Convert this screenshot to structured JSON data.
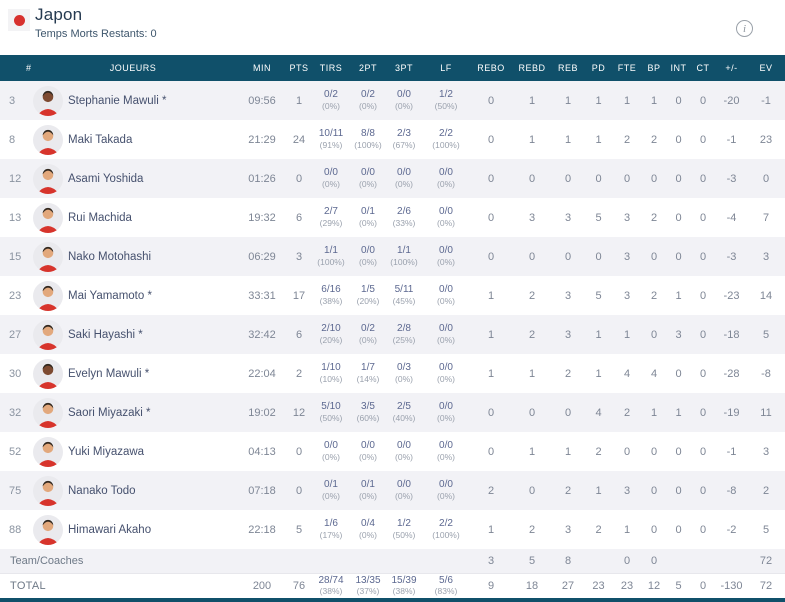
{
  "header": {
    "team_name": "Japon",
    "timeouts_label": "Temps Morts Restants: 0",
    "info_glyph": "i"
  },
  "colors": {
    "header_bg": "#10506a",
    "header_text": "#ffffff",
    "accent_red": "#d7312e",
    "stripe": "#f2f2f6",
    "title_text": "#253a50",
    "subtitle_text": "#3e566c",
    "name_text": "#46516e",
    "stat_text": "#7e8695",
    "frac_text": "#5c6890",
    "pct_text": "#9aa1ad"
  },
  "table": {
    "columns": [
      "#",
      "JOUEURS",
      "MIN",
      "PTS",
      "TIRS",
      "2PT",
      "3PT",
      "LF",
      "REBO",
      "REBD",
      "REB",
      "PD",
      "FTE",
      "BP",
      "INT",
      "CT",
      "+/-",
      "EV"
    ],
    "column_keys": [
      "num",
      "players",
      "min",
      "pts",
      "tirs",
      "2pt",
      "3pt",
      "lf",
      "rebo",
      "rebd",
      "reb",
      "pd",
      "fte",
      "bp",
      "int",
      "ct",
      "plus-minus",
      "ev"
    ],
    "stat_keys": [
      "rebo",
      "rebd",
      "reb",
      "pd",
      "fte",
      "bp",
      "int",
      "ct",
      "plus-minus",
      "ev"
    ],
    "players": [
      {
        "num": "3",
        "name": "Stephanie Mawuli *",
        "min": "09:56",
        "pts": "1",
        "tirs": [
          "0/2",
          "(0%)"
        ],
        "pt2": [
          "0/2",
          "(0%)"
        ],
        "pt3": [
          "0/0",
          "(0%)"
        ],
        "lf": [
          "1/2",
          "(50%)"
        ],
        "stats": [
          "0",
          "1",
          "1",
          "1",
          "1",
          "1",
          "0",
          "0",
          "-20",
          "-1"
        ],
        "skin": "dark"
      },
      {
        "num": "8",
        "name": "Maki Takada",
        "min": "21:29",
        "pts": "24",
        "tirs": [
          "10/11",
          "(91%)"
        ],
        "pt2": [
          "8/8",
          "(100%)"
        ],
        "pt3": [
          "2/3",
          "(67%)"
        ],
        "lf": [
          "2/2",
          "(100%)"
        ],
        "stats": [
          "0",
          "1",
          "1",
          "1",
          "2",
          "2",
          "0",
          "0",
          "-1",
          "23"
        ],
        "skin": "light"
      },
      {
        "num": "12",
        "name": "Asami Yoshida",
        "min": "01:26",
        "pts": "0",
        "tirs": [
          "0/0",
          "(0%)"
        ],
        "pt2": [
          "0/0",
          "(0%)"
        ],
        "pt3": [
          "0/0",
          "(0%)"
        ],
        "lf": [
          "0/0",
          "(0%)"
        ],
        "stats": [
          "0",
          "0",
          "0",
          "0",
          "0",
          "0",
          "0",
          "0",
          "-3",
          "0"
        ],
        "skin": "light"
      },
      {
        "num": "13",
        "name": "Rui Machida",
        "min": "19:32",
        "pts": "6",
        "tirs": [
          "2/7",
          "(29%)"
        ],
        "pt2": [
          "0/1",
          "(0%)"
        ],
        "pt3": [
          "2/6",
          "(33%)"
        ],
        "lf": [
          "0/0",
          "(0%)"
        ],
        "stats": [
          "0",
          "3",
          "3",
          "5",
          "3",
          "2",
          "0",
          "0",
          "-4",
          "7"
        ],
        "skin": "light"
      },
      {
        "num": "15",
        "name": "Nako Motohashi",
        "min": "06:29",
        "pts": "3",
        "tirs": [
          "1/1",
          "(100%)"
        ],
        "pt2": [
          "0/0",
          "(0%)"
        ],
        "pt3": [
          "1/1",
          "(100%)"
        ],
        "lf": [
          "0/0",
          "(0%)"
        ],
        "stats": [
          "0",
          "0",
          "0",
          "0",
          "3",
          "0",
          "0",
          "0",
          "-3",
          "3"
        ],
        "skin": "light"
      },
      {
        "num": "23",
        "name": "Mai Yamamoto *",
        "min": "33:31",
        "pts": "17",
        "tirs": [
          "6/16",
          "(38%)"
        ],
        "pt2": [
          "1/5",
          "(20%)"
        ],
        "pt3": [
          "5/11",
          "(45%)"
        ],
        "lf": [
          "0/0",
          "(0%)"
        ],
        "stats": [
          "1",
          "2",
          "3",
          "5",
          "3",
          "2",
          "1",
          "0",
          "-23",
          "14"
        ],
        "skin": "light"
      },
      {
        "num": "27",
        "name": "Saki Hayashi *",
        "min": "32:42",
        "pts": "6",
        "tirs": [
          "2/10",
          "(20%)"
        ],
        "pt2": [
          "0/2",
          "(0%)"
        ],
        "pt3": [
          "2/8",
          "(25%)"
        ],
        "lf": [
          "0/0",
          "(0%)"
        ],
        "stats": [
          "1",
          "2",
          "3",
          "1",
          "1",
          "0",
          "3",
          "0",
          "-18",
          "5"
        ],
        "skin": "light"
      },
      {
        "num": "30",
        "name": "Evelyn Mawuli *",
        "min": "22:04",
        "pts": "2",
        "tirs": [
          "1/10",
          "(10%)"
        ],
        "pt2": [
          "1/7",
          "(14%)"
        ],
        "pt3": [
          "0/3",
          "(0%)"
        ],
        "lf": [
          "0/0",
          "(0%)"
        ],
        "stats": [
          "1",
          "1",
          "2",
          "1",
          "4",
          "4",
          "0",
          "0",
          "-28",
          "-8"
        ],
        "skin": "dark"
      },
      {
        "num": "32",
        "name": "Saori Miyazaki *",
        "min": "19:02",
        "pts": "12",
        "tirs": [
          "5/10",
          "(50%)"
        ],
        "pt2": [
          "3/5",
          "(60%)"
        ],
        "pt3": [
          "2/5",
          "(40%)"
        ],
        "lf": [
          "0/0",
          "(0%)"
        ],
        "stats": [
          "0",
          "0",
          "0",
          "4",
          "2",
          "1",
          "1",
          "0",
          "-19",
          "11"
        ],
        "skin": "light"
      },
      {
        "num": "52",
        "name": "Yuki Miyazawa",
        "min": "04:13",
        "pts": "0",
        "tirs": [
          "0/0",
          "(0%)"
        ],
        "pt2": [
          "0/0",
          "(0%)"
        ],
        "pt3": [
          "0/0",
          "(0%)"
        ],
        "lf": [
          "0/0",
          "(0%)"
        ],
        "stats": [
          "0",
          "1",
          "1",
          "2",
          "0",
          "0",
          "0",
          "0",
          "-1",
          "3"
        ],
        "skin": "light"
      },
      {
        "num": "75",
        "name": "Nanako Todo",
        "min": "07:18",
        "pts": "0",
        "tirs": [
          "0/1",
          "(0%)"
        ],
        "pt2": [
          "0/1",
          "(0%)"
        ],
        "pt3": [
          "0/0",
          "(0%)"
        ],
        "lf": [
          "0/0",
          "(0%)"
        ],
        "stats": [
          "2",
          "0",
          "2",
          "1",
          "3",
          "0",
          "0",
          "0",
          "-8",
          "2"
        ],
        "skin": "light"
      },
      {
        "num": "88",
        "name": "Himawari Akaho",
        "min": "22:18",
        "pts": "5",
        "tirs": [
          "1/6",
          "(17%)"
        ],
        "pt2": [
          "0/4",
          "(0%)"
        ],
        "pt3": [
          "1/2",
          "(50%)"
        ],
        "lf": [
          "2/2",
          "(100%)"
        ],
        "stats": [
          "1",
          "2",
          "3",
          "2",
          "1",
          "0",
          "0",
          "0",
          "-2",
          "5"
        ],
        "skin": "light"
      }
    ],
    "team_row": {
      "label": "Team/Coaches",
      "stats": [
        "3",
        "5",
        "8",
        "",
        "0",
        "0",
        "",
        "",
        "",
        "72"
      ]
    },
    "total_row": {
      "label": "TOTAL",
      "min": "200",
      "pts": "76",
      "tirs": [
        "28/74",
        "(38%)"
      ],
      "pt2": [
        "13/35",
        "(37%)"
      ],
      "pt3": [
        "15/39",
        "(38%)"
      ],
      "lf": [
        "5/6",
        "(83%)"
      ],
      "stats": [
        "9",
        "18",
        "27",
        "23",
        "23",
        "12",
        "5",
        "0",
        "-130",
        "72"
      ]
    }
  }
}
